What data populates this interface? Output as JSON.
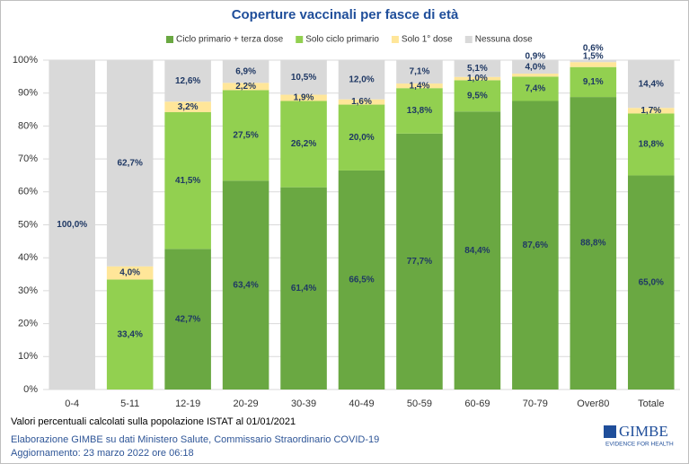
{
  "chart_data": {
    "type": "stacked_bar",
    "title": "Coperture vaccinali per fasce di età",
    "categories": [
      "0-4",
      "5-11",
      "12-19",
      "20-29",
      "30-39",
      "40-49",
      "50-59",
      "60-69",
      "70-79",
      "Over80",
      "Totale"
    ],
    "series": [
      {
        "name": "Ciclo primario + terza dose",
        "color": "#6aa842",
        "values": [
          null,
          null,
          42.7,
          63.4,
          61.4,
          66.5,
          77.7,
          84.4,
          87.6,
          88.8,
          65.0
        ],
        "value_labels": [
          null,
          null,
          "42,7%",
          "63,4%",
          "61,4%",
          "66,5%",
          "77,7%",
          "84,4%",
          "87,6%",
          "88,8%",
          "65,0%"
        ]
      },
      {
        "name": "Solo ciclo primario",
        "color": "#92d050",
        "values": [
          null,
          33.4,
          41.5,
          27.5,
          26.2,
          20.0,
          13.8,
          9.5,
          7.4,
          9.1,
          18.8
        ],
        "value_labels": [
          null,
          "33,4%",
          "41,5%",
          "27,5%",
          "26,2%",
          "20,0%",
          "13,8%",
          "9,5%",
          "7,4%",
          "9,1%",
          "18,8%"
        ]
      },
      {
        "name": "Solo 1° dose",
        "color": "#ffe699",
        "values": [
          null,
          4.0,
          3.2,
          2.2,
          1.9,
          1.6,
          1.4,
          1.0,
          0.9,
          1.5,
          1.7
        ],
        "value_labels": [
          null,
          "4,0%",
          "3,2%",
          "2,2%",
          "1,9%",
          "1,6%",
          "1,4%",
          "1,0%",
          "0,9%",
          "1,5%",
          "1,7%"
        ]
      },
      {
        "name": "Nessuna dose",
        "color": "#d9d9d9",
        "values": [
          100.0,
          62.7,
          12.6,
          6.9,
          10.5,
          12.0,
          7.1,
          5.1,
          4.0,
          0.6,
          14.4
        ],
        "value_labels": [
          "100,0%",
          "62,7%",
          "12,6%",
          "6,9%",
          "10,5%",
          "12,0%",
          "7,1%",
          "5,1%",
          "4,0%",
          "0,6%",
          "14,4%"
        ]
      }
    ],
    "ylim": [
      0,
      100
    ],
    "yticks": [
      {
        "value": 0,
        "label": "0%"
      },
      {
        "value": 10,
        "label": "10%"
      },
      {
        "value": 20,
        "label": "20%"
      },
      {
        "value": 30,
        "label": "30%"
      },
      {
        "value": 40,
        "label": "40%"
      },
      {
        "value": 50,
        "label": "50%"
      },
      {
        "value": 60,
        "label": "60%"
      },
      {
        "value": 70,
        "label": "70%"
      },
      {
        "value": 80,
        "label": "80%"
      },
      {
        "value": 90,
        "label": "90%"
      },
      {
        "value": 100,
        "label": "100%"
      }
    ],
    "grid": true,
    "legend": "top",
    "notes": [
      "Valori percentuali  calcolati sulla popolazione ISTAT al 01/01/2021",
      "Elaborazione GIMBE su dati Ministero  Salute, Commissario Straordinario  COVID-19",
      "Aggiornamento:  23 marzo 2022  ore 06:18"
    ],
    "logo": {
      "name": "GIMBE",
      "tagline": "EVIDENCE FOR HEALTH"
    }
  }
}
